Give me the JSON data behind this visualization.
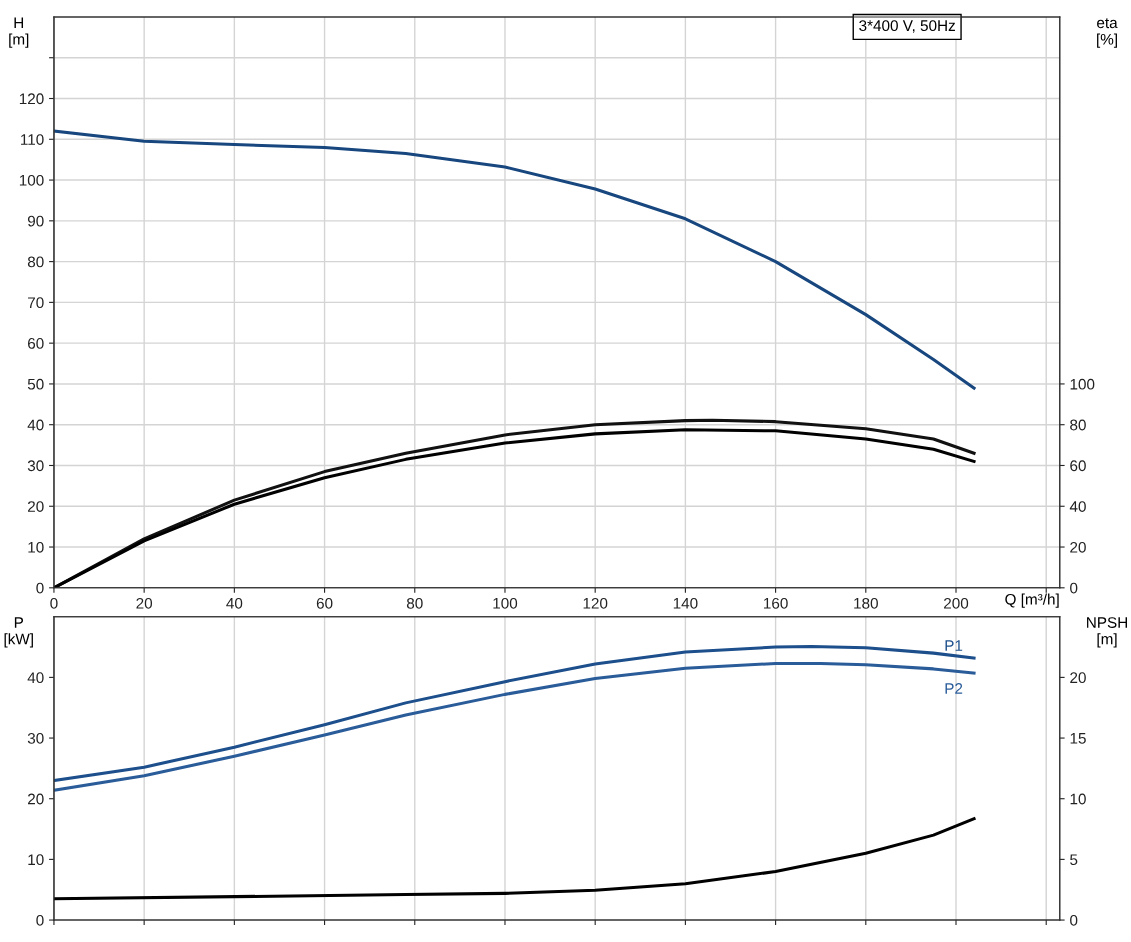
{
  "chart_data": [
    {
      "type": "line",
      "xlabel": "Q [m³/h]",
      "ylabel": "H\n[m]",
      "y2label": "eta\n[%]",
      "annotations": [
        "3*400 V, 50Hz"
      ],
      "xlim": [
        0,
        223
      ],
      "xticks": [
        0,
        20,
        40,
        60,
        80,
        100,
        120,
        140,
        160,
        180,
        200,
        {
          "value": 220,
          "label": null
        }
      ],
      "ylim": [
        0,
        140
      ],
      "yticks": [
        0,
        10,
        20,
        30,
        40,
        50,
        60,
        70,
        80,
        90,
        100,
        110,
        120,
        {
          "value": 130,
          "label": null
        }
      ],
      "y2lim": [
        0,
        280
      ],
      "y2ticks": [
        0,
        20,
        40,
        60,
        80,
        100
      ],
      "grid": true,
      "legend": false,
      "marker": "none",
      "line_style": "solid",
      "series": [
        {
          "color": "#17477e",
          "x": [
            0,
            20,
            40,
            60,
            78,
            100,
            120,
            140,
            160,
            180,
            195,
            204
          ],
          "values": [
            112,
            109.5,
            108.7,
            108,
            106.5,
            103.2,
            97.8,
            90.5,
            80,
            67,
            56,
            49
          ]
        },
        {
          "color": "#111111",
          "axis": "y2",
          "x": [
            0,
            20,
            40,
            60,
            78,
            100,
            120,
            140,
            146,
            160,
            180,
            195,
            204
          ],
          "values": [
            0,
            24,
            43,
            57,
            66,
            75,
            80,
            82,
            82.2,
            81.5,
            78,
            73,
            66
          ]
        },
        {
          "color": "#000000",
          "axis": "y2",
          "x": [
            0,
            20,
            40,
            60,
            78,
            100,
            120,
            140,
            160,
            180,
            195,
            204
          ],
          "values": [
            0,
            23,
            41,
            54,
            63,
            71,
            75.5,
            77.5,
            77,
            73,
            68,
            62
          ]
        }
      ]
    },
    {
      "type": "line",
      "ylabel": "P\n[kW]",
      "y2label": "NPSH\n[m]",
      "tick_labels": "y",
      "xlim": [
        0,
        223
      ],
      "xticks": [
        0,
        20,
        40,
        60,
        80,
        100,
        120,
        140,
        160,
        180,
        200,
        {
          "value": 220,
          "label": null
        }
      ],
      "ylim": [
        0,
        50
      ],
      "yticks": [
        0,
        10,
        20,
        30,
        40
      ],
      "y2lim": [
        0,
        25
      ],
      "y2ticks": [
        0,
        5,
        10,
        15,
        20
      ],
      "grid": "x",
      "legend": false,
      "marker": "none",
      "line_style": "solid",
      "series": [
        {
          "name": "P1",
          "color": "#1c4f8c",
          "x": [
            0,
            20,
            40,
            60,
            78,
            100,
            120,
            140,
            160,
            168,
            180,
            195,
            204
          ],
          "values": [
            23,
            25.2,
            28.5,
            32.2,
            35.8,
            39.3,
            42.2,
            44.2,
            45.0,
            45.1,
            44.9,
            44,
            43.2
          ]
        },
        {
          "name": "P2",
          "color": "#2a5c9a",
          "x": [
            0,
            20,
            40,
            60,
            78,
            100,
            120,
            140,
            160,
            170,
            180,
            195,
            204
          ],
          "values": [
            21.4,
            23.8,
            27,
            30.5,
            33.8,
            37.2,
            39.8,
            41.5,
            42.3,
            42.3,
            42.1,
            41.4,
            40.7
          ]
        },
        {
          "color": "#000000",
          "axis": "y2",
          "x": [
            0,
            78,
            100,
            120,
            140,
            160,
            180,
            195,
            204
          ],
          "values": [
            1.75,
            2.1,
            2.2,
            2.45,
            3,
            4,
            5.5,
            7,
            8.35
          ]
        }
      ]
    }
  ]
}
